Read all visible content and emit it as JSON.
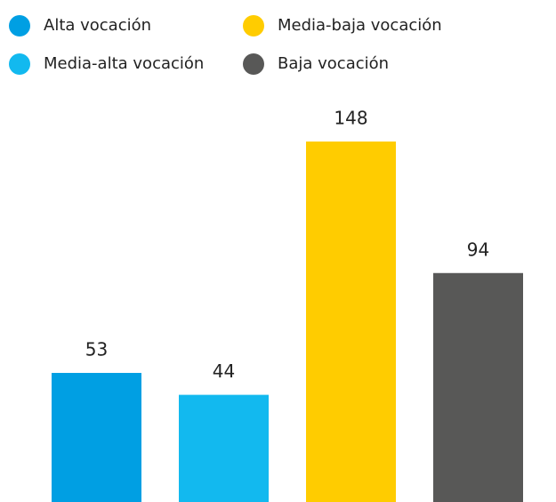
{
  "chart_data": {
    "type": "bar",
    "categories": [
      "Alta vocación",
      "Media-alta vocación",
      "Media-baja vocación",
      "Baja vocación"
    ],
    "values": [
      53,
      44,
      148,
      94
    ],
    "colors": [
      "#009fe3",
      "#12b9ef",
      "#ffcc00",
      "#585857"
    ]
  }
}
